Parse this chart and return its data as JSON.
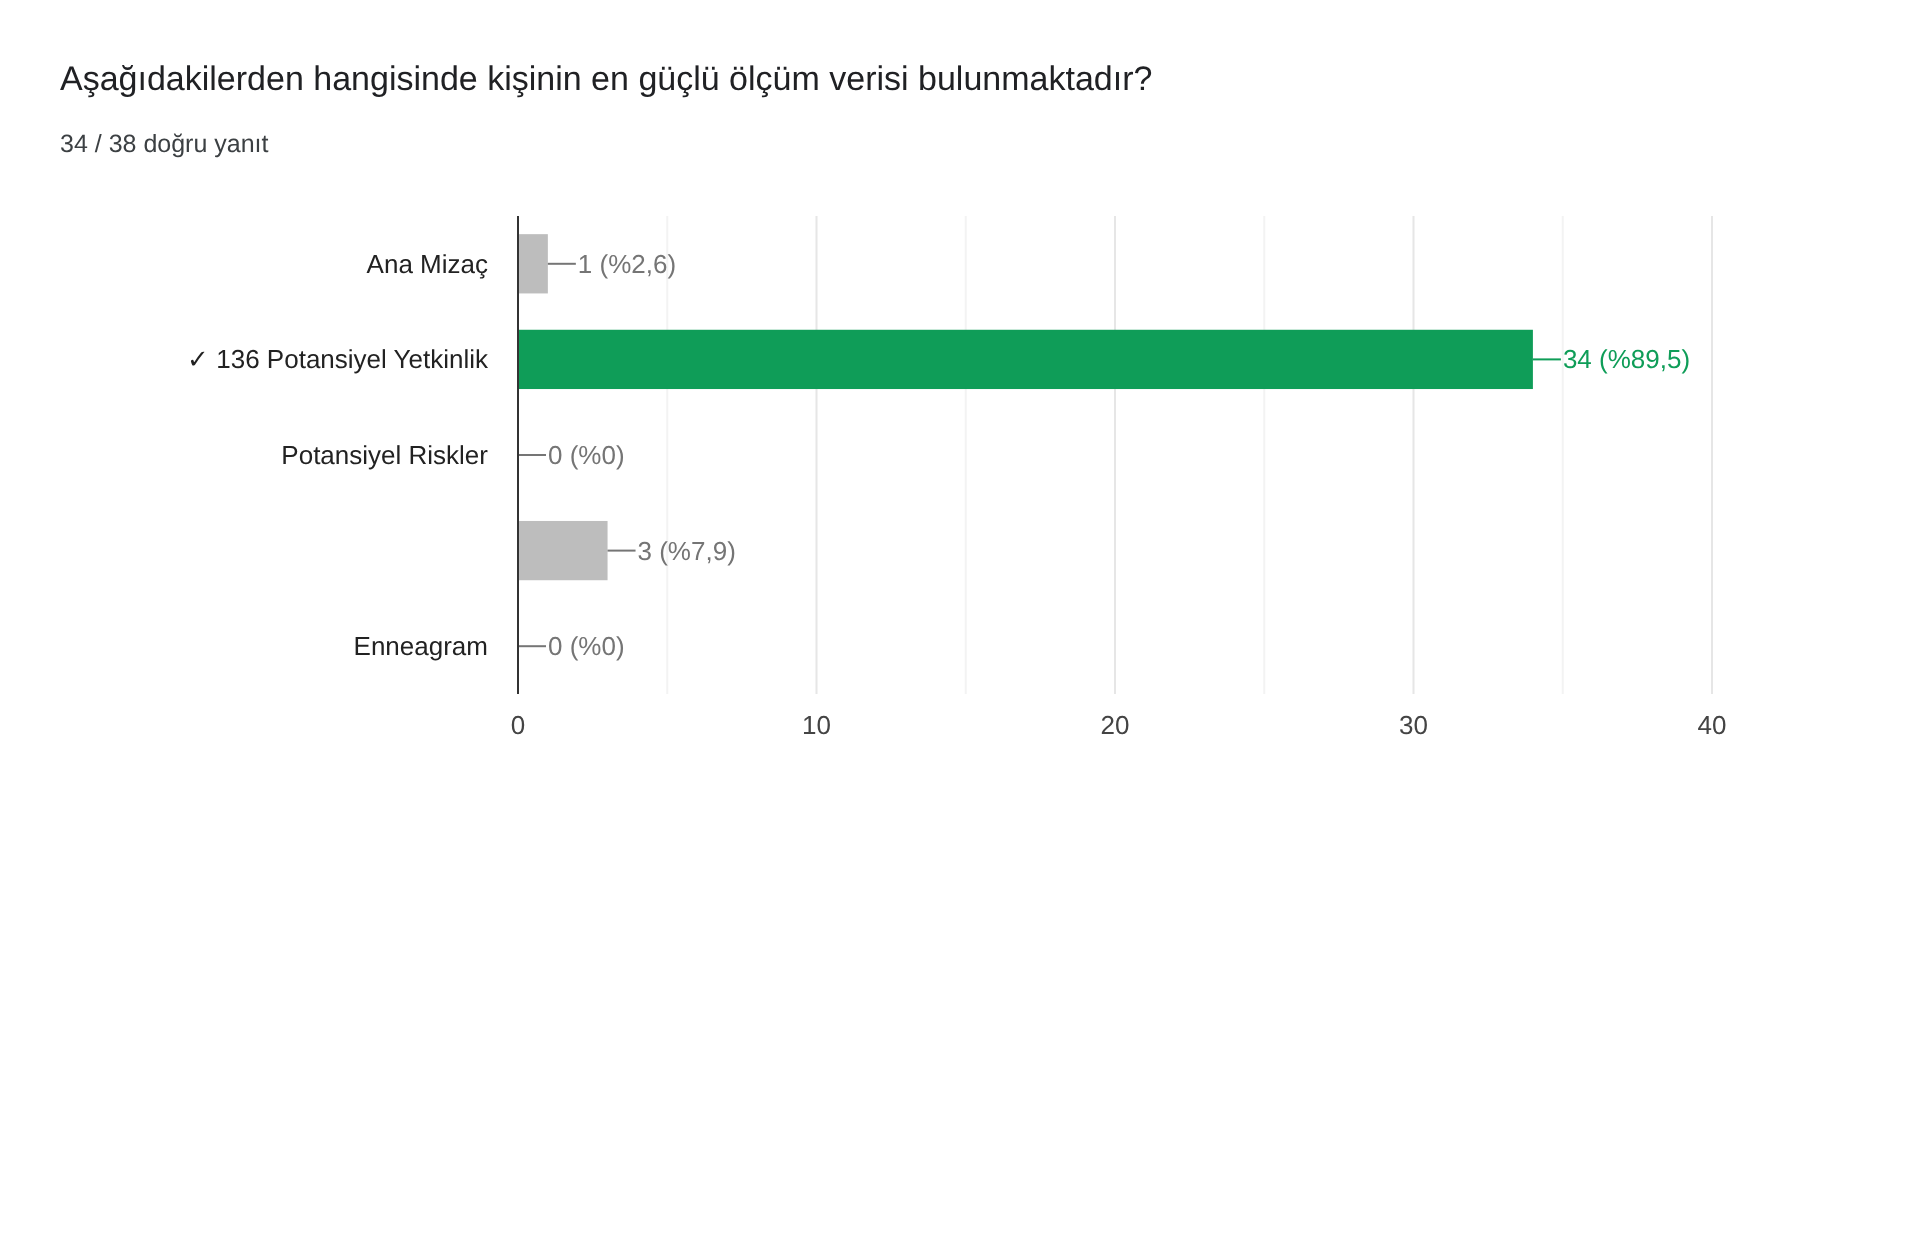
{
  "chart_data": {
    "type": "bar",
    "orientation": "horizontal",
    "title": "Aşağıdakilerden hangisinde kişinin en güçlü ölçüm verisi  bulunmaktadır?",
    "subtitle": "34 / 38 doğru yanıt",
    "categories": [
      "Ana Mizaç",
      "✓ 136 Potansiyel Yetkinlik",
      "Potansiyel Riskler",
      null,
      "Enneagram"
    ],
    "values": [
      1,
      34,
      0,
      3,
      0
    ],
    "colors": [
      "#bdbdbd",
      "#0f9d58",
      "#bdbdbd",
      "#bdbdbd",
      "#bdbdbd"
    ],
    "value_labels": [
      "1 (%2,6)",
      "34 (%89,5)",
      "0 (%0)",
      "3 (%7,9)",
      "0 (%0)"
    ],
    "xlim": [
      0,
      40
    ],
    "xticks": [
      0,
      {
        "value": 5,
        "label": null
      },
      10,
      {
        "value": 15,
        "label": null
      },
      20,
      {
        "value": 25,
        "label": null
      },
      30,
      {
        "value": 35,
        "label": null
      },
      40
    ],
    "grid": "x"
  }
}
